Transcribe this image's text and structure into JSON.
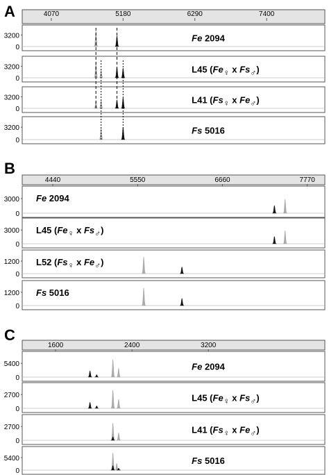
{
  "colors": {
    "gray": "#aaaaaa",
    "black": "#111111"
  },
  "chart_data": [
    {
      "type": "electropherogram",
      "panel": "A",
      "x_ticks": [
        4070,
        5180,
        6290,
        7400
      ],
      "xlim": [
        3620,
        8300
      ],
      "tracks": [
        {
          "label_italic": "Fe",
          "label_rest": " 2094",
          "y_tick": "3200",
          "ymax": 5200,
          "peaks": [
            {
              "x": 4760,
              "height": 4400,
              "color": "gray"
            },
            {
              "x": 5085,
              "height": 3000,
              "color": "black"
            }
          ]
        },
        {
          "label_plain": "L45 (",
          "cross_female": "Fe",
          "cross_male": "Fs",
          "label_end": ")",
          "y_tick": "3200",
          "ymax": 5200,
          "peaks": [
            {
              "x": 4760,
              "height": 4400,
              "color": "gray"
            },
            {
              "x": 4840,
              "height": 2200,
              "color": "gray"
            },
            {
              "x": 5085,
              "height": 3000,
              "color": "black"
            },
            {
              "x": 5180,
              "height": 2700,
              "color": "black"
            }
          ]
        },
        {
          "label_plain": "L41 (",
          "cross_female": "Fs",
          "cross_male": "Fe",
          "label_end": ")",
          "y_tick": "3200",
          "ymax": 5200,
          "peaks": [
            {
              "x": 4760,
              "height": 2200,
              "color": "gray"
            },
            {
              "x": 4840,
              "height": 2400,
              "color": "gray"
            },
            {
              "x": 5085,
              "height": 2400,
              "color": "black"
            },
            {
              "x": 5180,
              "height": 3000,
              "color": "black"
            }
          ]
        },
        {
          "label_italic": "Fs",
          "label_rest": " 5016",
          "y_tick": "3200",
          "ymax": 5200,
          "peaks": [
            {
              "x": 4840,
              "height": 3200,
              "color": "gray"
            },
            {
              "x": 5180,
              "height": 3200,
              "color": "black"
            }
          ]
        }
      ]
    },
    {
      "type": "electropherogram",
      "panel": "B",
      "x_ticks": [
        4440,
        5550,
        6660,
        7770
      ],
      "xlim": [
        4040,
        8000
      ],
      "tracks": [
        {
          "label_italic": "Fe",
          "label_rest": " 2094",
          "y_tick": "3000",
          "ymax": 5000,
          "peaks": [
            {
              "x": 7340,
              "height": 1600,
              "color": "black"
            },
            {
              "x": 7480,
              "height": 2900,
              "color": "gray"
            }
          ]
        },
        {
          "label_plain": "L45 (",
          "cross_female": "Fe",
          "cross_male": "Fs",
          "label_end": ")",
          "y_tick": "3000",
          "ymax": 5000,
          "peaks": [
            {
              "x": 7340,
              "height": 1600,
              "color": "black"
            },
            {
              "x": 7480,
              "height": 2900,
              "color": "gray"
            }
          ]
        },
        {
          "label_plain": "L52 (",
          "cross_female": "Fs",
          "cross_male": "Fe",
          "label_end": ")",
          "y_tick": "1200",
          "ymax": 2000,
          "peaks": [
            {
              "x": 5630,
              "height": 1600,
              "color": "gray"
            },
            {
              "x": 6130,
              "height": 650,
              "color": "black"
            }
          ]
        },
        {
          "label_italic": "Fs",
          "label_rest": " 5016",
          "y_tick": "1200",
          "ymax": 2000,
          "peaks": [
            {
              "x": 5630,
              "height": 1600,
              "color": "gray"
            },
            {
              "x": 6130,
              "height": 650,
              "color": "black"
            }
          ]
        }
      ]
    },
    {
      "type": "electropherogram",
      "panel": "C",
      "x_ticks": [
        1600,
        2400,
        3200
      ],
      "xlim": [
        1250,
        4420
      ],
      "tracks": [
        {
          "label_italic": "Fe",
          "label_rest": " 2094",
          "y_tick": "5400",
          "ymax": 9000,
          "peaks": [
            {
              "x": 1960,
              "height": 2500,
              "color": "black"
            },
            {
              "x": 2030,
              "height": 1000,
              "color": "black"
            },
            {
              "x": 2200,
              "height": 7000,
              "color": "gray"
            },
            {
              "x": 2260,
              "height": 3500,
              "color": "gray"
            }
          ]
        },
        {
          "label_plain": "L45 (",
          "cross_female": "Fe",
          "cross_male": "Fs",
          "label_end": ")",
          "y_tick": "2700",
          "ymax": 4500,
          "peaks": [
            {
              "x": 1960,
              "height": 1200,
              "color": "black"
            },
            {
              "x": 2030,
              "height": 500,
              "color": "black"
            },
            {
              "x": 2200,
              "height": 3600,
              "color": "gray"
            },
            {
              "x": 2260,
              "height": 1800,
              "color": "gray"
            }
          ]
        },
        {
          "label_plain": "L41 (",
          "cross_female": "Fs",
          "cross_male": "Fe",
          "label_end": ")",
          "y_tick": "2700",
          "ymax": 4500,
          "peaks": [
            {
              "x": 2200,
              "height": 3400,
              "color": "gray"
            },
            {
              "x": 2260,
              "height": 1500,
              "color": "gray"
            },
            {
              "x": 2200,
              "height": 700,
              "color": "black"
            }
          ]
        },
        {
          "label_italic": "Fs",
          "label_rest": " 5016",
          "y_tick": "5400",
          "ymax": 9000,
          "peaks": [
            {
              "x": 2200,
              "height": 7500,
              "color": "gray"
            },
            {
              "x": 2240,
              "height": 3000,
              "color": "gray"
            },
            {
              "x": 2200,
              "height": 2000,
              "color": "black"
            },
            {
              "x": 2260,
              "height": 900,
              "color": "black"
            }
          ]
        }
      ]
    }
  ]
}
